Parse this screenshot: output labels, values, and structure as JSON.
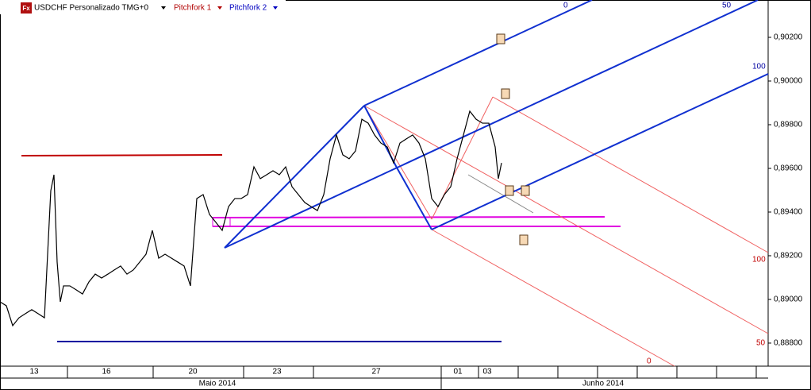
{
  "header": {
    "icon": "Fx",
    "symbol": "USDCHF Personalizado TMG+0",
    "tools": [
      "Pitchfork 1",
      "Pitchfork 2"
    ]
  },
  "chart_data": {
    "type": "line",
    "color": "#000000",
    "x": [
      0,
      2,
      4,
      6,
      8,
      10,
      12,
      14,
      16,
      17,
      18,
      19,
      20,
      22,
      24,
      26,
      28,
      30,
      32,
      34,
      36,
      38,
      40,
      42,
      44,
      46,
      48,
      50,
      52,
      54,
      56,
      58,
      60,
      62,
      64,
      66,
      68,
      70,
      72,
      74,
      76,
      78,
      80,
      82,
      84,
      86,
      88,
      90,
      92,
      94,
      96,
      98,
      100,
      102,
      104,
      106,
      108,
      110,
      112,
      114,
      116,
      118,
      120,
      122,
      124,
      126,
      128,
      130,
      132,
      134,
      136,
      138,
      140,
      142,
      144,
      146,
      148,
      150,
      152,
      154,
      156,
      157,
      158
    ],
    "values": [
      0.88989,
      0.88971,
      0.8888,
      0.88916,
      0.88935,
      0.88953,
      0.88935,
      0.88916,
      0.89498,
      0.89571,
      0.89171,
      0.88989,
      0.89062,
      0.89062,
      0.89044,
      0.89025,
      0.8908,
      0.89116,
      0.89098,
      0.89116,
      0.89135,
      0.89153,
      0.89116,
      0.89135,
      0.89171,
      0.89207,
      0.89316,
      0.89189,
      0.89207,
      0.89189,
      0.89171,
      0.89153,
      0.89062,
      0.89462,
      0.8948,
      0.89389,
      0.89353,
      0.89316,
      0.89425,
      0.89462,
      0.89462,
      0.8948,
      0.89607,
      0.89553,
      0.89571,
      0.89589,
      0.89571,
      0.89607,
      0.89516,
      0.8948,
      0.89444,
      0.89425,
      0.89407,
      0.8948,
      0.89644,
      0.89753,
      0.89662,
      0.89644,
      0.8968,
      0.89825,
      0.89807,
      0.89753,
      0.89716,
      0.89698,
      0.89625,
      0.89716,
      0.89735,
      0.89753,
      0.89716,
      0.89644,
      0.89462,
      0.89425,
      0.8948,
      0.89516,
      0.89644,
      0.89753,
      0.89862,
      0.89825,
      0.89807,
      0.89807,
      0.89698,
      0.89553,
      0.89625
    ],
    "xlim": [
      0,
      242
    ],
    "xticks": [
      {
        "value": 10.75,
        "label": "13"
      },
      {
        "value": 33.5,
        "label": "16"
      },
      {
        "value": 60.75,
        "label": "20"
      },
      {
        "value": 87.25,
        "label": "23"
      },
      {
        "value": 118.5,
        "label": "27"
      },
      {
        "value": 144.25,
        "label": "01"
      },
      {
        "value": 153.5,
        "label": "03"
      }
    ],
    "months": [
      {
        "value": 68.5,
        "label": "Maio 2014"
      },
      {
        "value": 190,
        "label": "Junho 2014"
      }
    ],
    "ylim": [
      0.88698,
      0.90371
    ],
    "yticks": [
      {
        "value": 0.888,
        "label": "0,88800"
      },
      {
        "value": 0.89,
        "label": "0,89000"
      },
      {
        "value": 0.892,
        "label": "0,89200"
      },
      {
        "value": 0.894,
        "label": "0,89400"
      },
      {
        "value": 0.896,
        "label": "0,89600"
      },
      {
        "value": 0.898,
        "label": "0,89800"
      },
      {
        "value": 0.9,
        "label": "0,90000"
      },
      {
        "value": 0.902,
        "label": "0,90200"
      }
    ],
    "pitchfork_2_levels": [
      "0",
      "50",
      "100"
    ],
    "pitchfork_1_levels": [
      "100",
      "50",
      "0"
    ]
  }
}
